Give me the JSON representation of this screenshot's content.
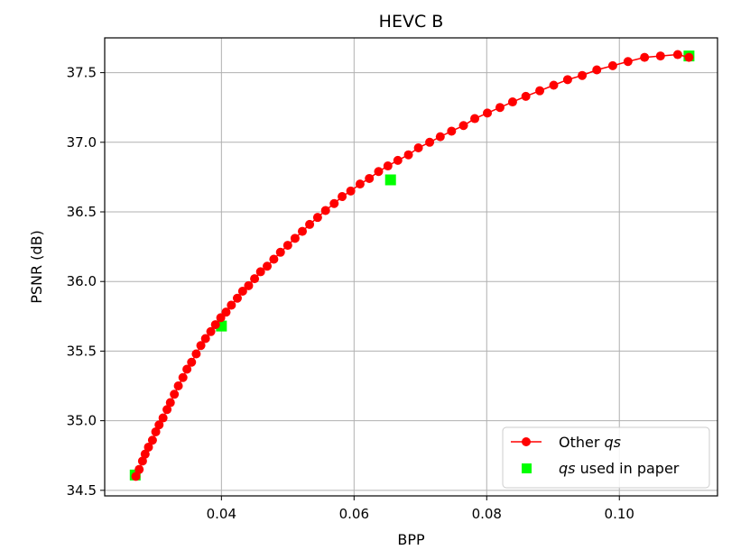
{
  "chart_data": {
    "type": "line",
    "title": "HEVC B",
    "xlabel": "BPP",
    "ylabel": "PSNR (dB)",
    "xlim": [
      0.0224,
      0.1148
    ],
    "ylim": [
      34.46,
      37.75
    ],
    "xticks": [
      0.04,
      0.06,
      0.08,
      0.1
    ],
    "xtick_labels": [
      "0.04",
      "0.06",
      "0.08",
      "0.10"
    ],
    "yticks": [
      34.5,
      35.0,
      35.5,
      36.0,
      36.5,
      37.0,
      37.5
    ],
    "ytick_labels": [
      "34.5",
      "35.0",
      "35.5",
      "36.0",
      "36.5",
      "37.0",
      "37.5"
    ],
    "grid": true,
    "legend_position": "lower-right",
    "legend": [
      {
        "prefix": "Other ",
        "italic": "qs",
        "suffix": "",
        "marker": "red-circle-line"
      },
      {
        "prefix": "",
        "italic": "qs",
        "suffix": " used in paper",
        "marker": "green-square"
      }
    ],
    "series": [
      {
        "name": "Other qs",
        "color": "#ff0000",
        "marker": "circle",
        "x": [
          0.0271,
          0.0276,
          0.0281,
          0.0285,
          0.029,
          0.0296,
          0.0301,
          0.0306,
          0.0312,
          0.0318,
          0.0323,
          0.0329,
          0.0335,
          0.0342,
          0.0348,
          0.0355,
          0.0362,
          0.0369,
          0.0376,
          0.0384,
          0.0391,
          0.0399,
          0.0407,
          0.0415,
          0.0424,
          0.0432,
          0.0441,
          0.045,
          0.0459,
          0.0469,
          0.0479,
          0.0489,
          0.05,
          0.0511,
          0.0522,
          0.0533,
          0.0545,
          0.0557,
          0.057,
          0.0582,
          0.0595,
          0.0609,
          0.0623,
          0.0637,
          0.0651,
          0.0666,
          0.0682,
          0.0697,
          0.0714,
          0.073,
          0.0747,
          0.0765,
          0.0782,
          0.0801,
          0.082,
          0.0839,
          0.0859,
          0.088,
          0.0901,
          0.0922,
          0.0944,
          0.0966,
          0.099,
          0.1013,
          0.1038,
          0.1062,
          0.1088,
          0.1105
        ],
        "y": [
          34.6,
          34.65,
          34.71,
          34.76,
          34.81,
          34.86,
          34.92,
          34.97,
          35.02,
          35.08,
          35.13,
          35.19,
          35.25,
          35.31,
          35.37,
          35.42,
          35.48,
          35.54,
          35.59,
          35.64,
          35.69,
          35.74,
          35.78,
          35.83,
          35.88,
          35.93,
          35.97,
          36.02,
          36.07,
          36.11,
          36.16,
          36.21,
          36.26,
          36.31,
          36.36,
          36.41,
          36.46,
          36.51,
          36.56,
          36.61,
          36.65,
          36.7,
          36.74,
          36.79,
          36.83,
          36.87,
          36.91,
          36.96,
          37.0,
          37.04,
          37.08,
          37.12,
          37.17,
          37.21,
          37.25,
          37.29,
          37.33,
          37.37,
          37.41,
          37.45,
          37.48,
          37.52,
          37.55,
          37.58,
          37.61,
          37.62,
          37.63,
          37.61
        ]
      },
      {
        "name": "qs used in paper",
        "color": "#00ff00",
        "marker": "square",
        "x": [
          0.027,
          0.04,
          0.0655,
          0.1105
        ],
        "y": [
          34.61,
          35.68,
          36.73,
          37.62
        ]
      }
    ]
  }
}
